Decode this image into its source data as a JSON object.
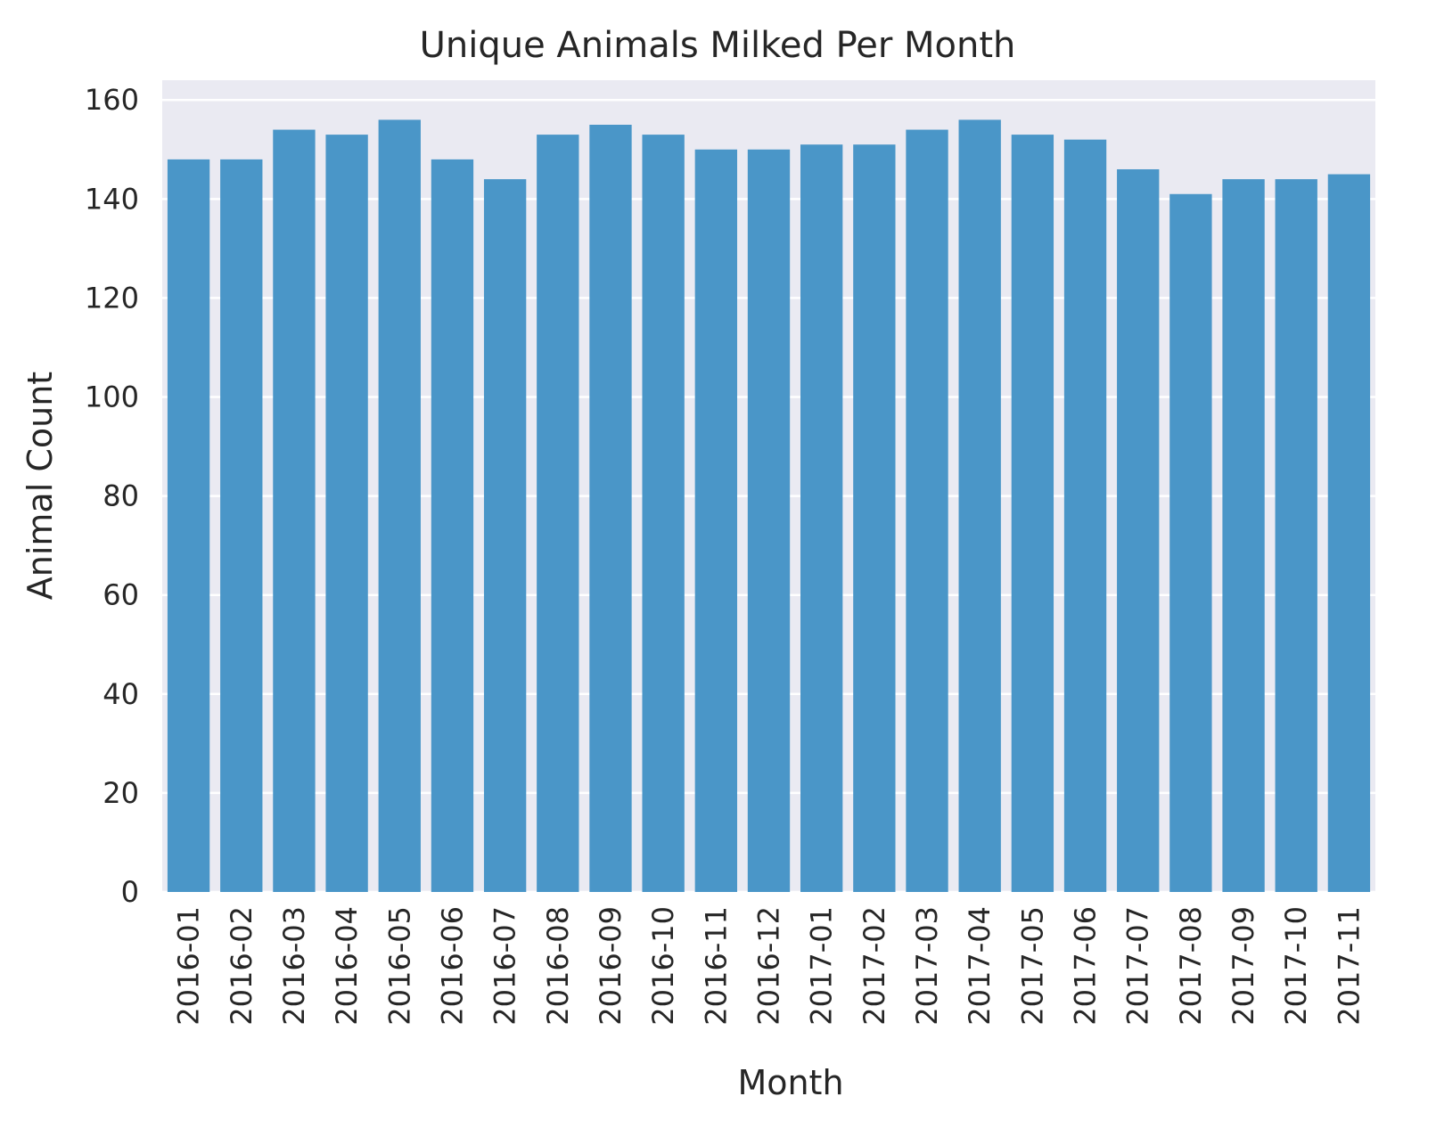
{
  "chart_data": {
    "type": "bar",
    "title": "Unique Animals Milked Per Month",
    "xlabel": "Month",
    "ylabel": "Animal Count",
    "categories": [
      "2016-01",
      "2016-02",
      "2016-03",
      "2016-04",
      "2016-05",
      "2016-06",
      "2016-07",
      "2016-08",
      "2016-09",
      "2016-10",
      "2016-11",
      "2016-12",
      "2017-01",
      "2017-02",
      "2017-03",
      "2017-04",
      "2017-05",
      "2017-06",
      "2017-07",
      "2017-08",
      "2017-09",
      "2017-10",
      "2017-11"
    ],
    "values": [
      148,
      148,
      154,
      153,
      156,
      148,
      144,
      153,
      155,
      153,
      150,
      150,
      151,
      151,
      154,
      156,
      153,
      152,
      146,
      141,
      144,
      144,
      145
    ],
    "ylim": [
      0,
      164
    ],
    "yticks": [
      0,
      20,
      40,
      60,
      80,
      100,
      120,
      140,
      160
    ],
    "grid": true,
    "colors": {
      "bar": "#4a96c8",
      "plot_background": "#eaeaf2",
      "grid": "#ffffff",
      "text": "#262626"
    }
  }
}
